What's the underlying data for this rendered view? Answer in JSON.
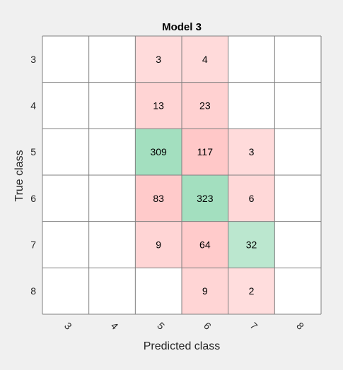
{
  "chart_data": {
    "type": "heatmap",
    "title": "Model 3",
    "xlabel": "Predicted class",
    "ylabel": "True class",
    "x_categories": [
      "3",
      "4",
      "5",
      "6",
      "7",
      "8"
    ],
    "y_categories": [
      "3",
      "4",
      "5",
      "6",
      "7",
      "8"
    ],
    "matrix": [
      [
        null,
        null,
        3,
        4,
        null,
        null
      ],
      [
        null,
        null,
        13,
        23,
        null,
        null
      ],
      [
        null,
        null,
        309,
        117,
        3,
        null
      ],
      [
        null,
        null,
        83,
        323,
        6,
        null
      ],
      [
        null,
        null,
        9,
        64,
        32,
        null
      ],
      [
        null,
        null,
        null,
        9,
        2,
        null
      ]
    ],
    "grid": true,
    "colors": {
      "figure_background": "#f0f0f0",
      "axes_background": "#ffffff",
      "grid_line": "#7f7f7f",
      "diagonal_strong": "#a3dfbf",
      "diagonal_weak": "#def3e7",
      "offdiagonal_strong": "#ffc8c8",
      "offdiagonal_weak": "#ffe1e1",
      "text": "#000000",
      "tick_text": "#262626"
    }
  }
}
